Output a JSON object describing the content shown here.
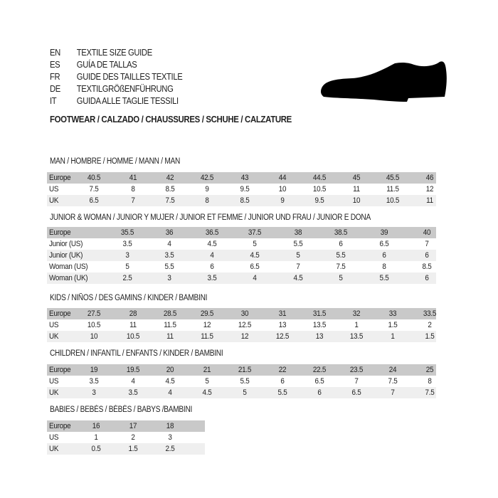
{
  "header": {
    "languages": [
      {
        "code": "EN",
        "text": "TEXTILE SIZE GUIDE"
      },
      {
        "code": "ES",
        "text": "GUÍA DE TALLAS"
      },
      {
        "code": "FR",
        "text": "GUIDE DES TAILLES TEXTILE"
      },
      {
        "code": "DE",
        "text": "TEXTILGRÖßENFÜHRUNG"
      },
      {
        "code": "IT",
        "text": "GUIDA ALLE TAGLIE TESSILI"
      }
    ],
    "footwear": "FOOTWEAR / CALZADO / CHAUSSURES / SCHUHE / CALZATURE",
    "icon": "shoe-silhouette-icon"
  },
  "colors": {
    "header_row": "#c9c9c9",
    "alt_row": "#efefef"
  },
  "sections": [
    {
      "title": "MAN / HOMBRE / HOMME / MANN / MAN",
      "rows": [
        {
          "label": "Europe",
          "values": [
            "40.5",
            "41",
            "42",
            "42.5",
            "43",
            "44",
            "44.5",
            "45",
            "45.5",
            "46"
          ]
        },
        {
          "label": "US",
          "values": [
            "7.5",
            "8",
            "8.5",
            "9",
            "9.5",
            "10",
            "10.5",
            "11",
            "11.5",
            "12"
          ]
        },
        {
          "label": "UK",
          "values": [
            "6.5",
            "7",
            "7.5",
            "8",
            "8.5",
            "9",
            "9.5",
            "10",
            "10.5",
            "11"
          ]
        }
      ]
    },
    {
      "title": "JUNIOR & WOMAN / JUNIOR Y MUJER / JUNIOR ET FEMME / JUNIOR UND FRAU / JUNIOR E DONA",
      "rows": [
        {
          "label": "Europe",
          "values": [
            "35.5",
            "36",
            "36.5",
            "37.5",
            "38",
            "38.5",
            "39",
            "40"
          ]
        },
        {
          "label": "Junior (US)",
          "values": [
            "3.5",
            "4",
            "4.5",
            "5",
            "5.5",
            "6",
            "6.5",
            "7"
          ]
        },
        {
          "label": "Junior (UK)",
          "values": [
            "3",
            "3.5",
            "4",
            "4.5",
            "5",
            "5.5",
            "6",
            "6"
          ]
        },
        {
          "label": "Woman (US)",
          "values": [
            "5",
            "5.5",
            "6",
            "6.5",
            "7",
            "7.5",
            "8",
            "8.5"
          ]
        },
        {
          "label": "Woman (UK)",
          "values": [
            "2.5",
            "3",
            "3.5",
            "4",
            "4.5",
            "5",
            "5.5",
            "6"
          ]
        }
      ]
    },
    {
      "title": "KIDS / NIÑOS / DES GAMINS / KINDER / BAMBINI",
      "rows": [
        {
          "label": "Europe",
          "values": [
            "27.5",
            "28",
            "28.5",
            "29.5",
            "30",
            "31",
            "31.5",
            "32",
            "33",
            "33.5"
          ]
        },
        {
          "label": "US",
          "values": [
            "10.5",
            "11",
            "11.5",
            "12",
            "12.5",
            "13",
            "13.5",
            "1",
            "1.5",
            "2"
          ]
        },
        {
          "label": "UK",
          "values": [
            "10",
            "10.5",
            "11",
            "11.5",
            "12",
            "12.5",
            "13",
            "13.5",
            "1",
            "1.5"
          ]
        }
      ]
    },
    {
      "title": "CHILDREN / INFANTIL / ENFANTS / KINDER / BAMBINI",
      "rows": [
        {
          "label": "Europe",
          "values": [
            "19",
            "19.5",
            "20",
            "21",
            "21.5",
            "22",
            "22.5",
            "23.5",
            "24",
            "25"
          ]
        },
        {
          "label": "US",
          "values": [
            "3.5",
            "4",
            "4.5",
            "5",
            "5.5",
            "6",
            "6.5",
            "7",
            "7.5",
            "8"
          ]
        },
        {
          "label": "UK",
          "values": [
            "3",
            "3.5",
            "4",
            "4.5",
            "5",
            "5.5",
            "6",
            "6.5",
            "7",
            "7.5"
          ]
        }
      ]
    },
    {
      "title": "BABIES  / BEBÉS / BÉBÉS / BABYS /BAMBINI",
      "rows": [
        {
          "label": "Europe",
          "values": [
            "16",
            "17",
            "18"
          ]
        },
        {
          "label": "US",
          "values": [
            "1",
            "2",
            "3"
          ]
        },
        {
          "label": "UK",
          "values": [
            "0.5",
            "1.5",
            "2.5"
          ]
        }
      ]
    }
  ]
}
